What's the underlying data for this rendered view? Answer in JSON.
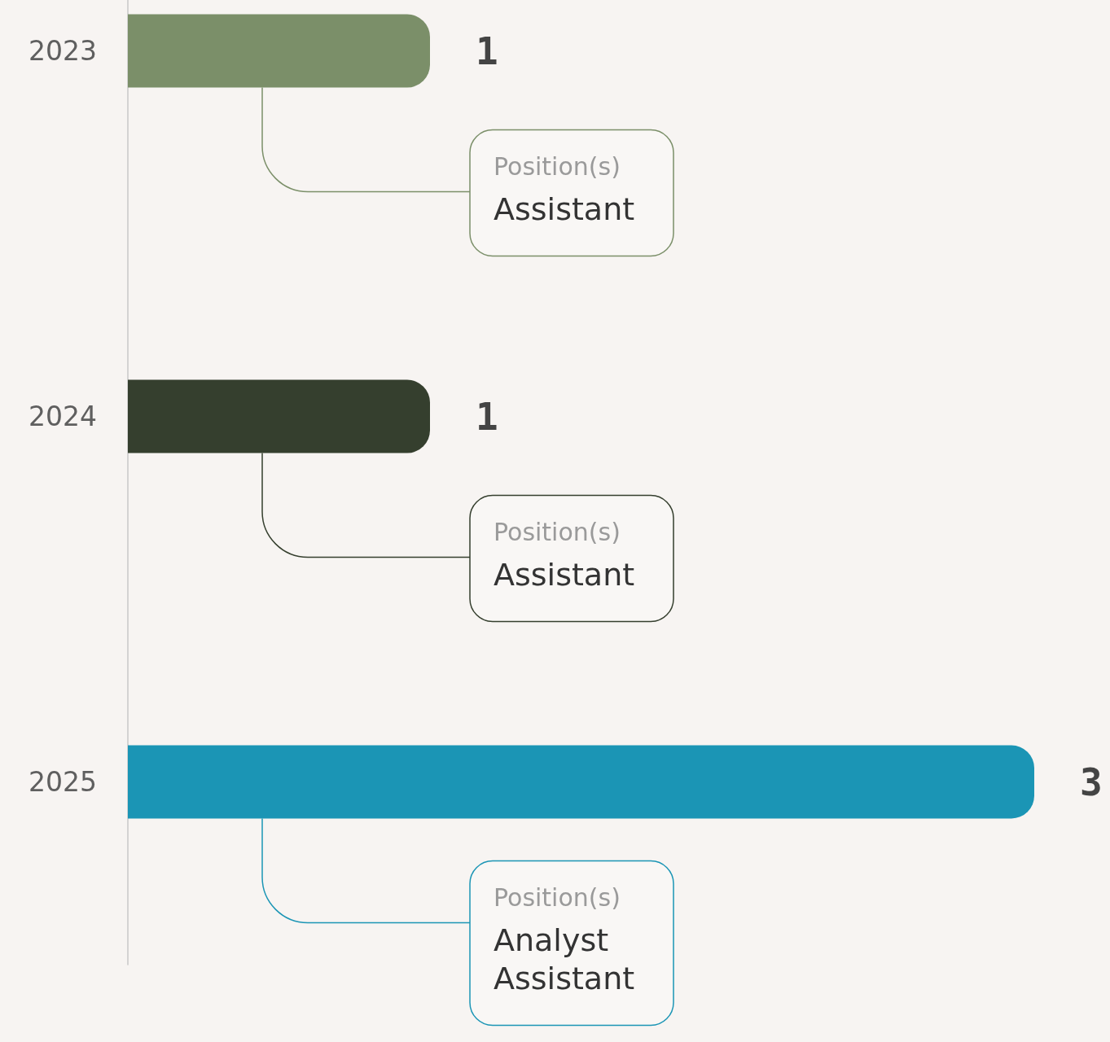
{
  "chart_data": {
    "type": "bar",
    "orientation": "horizontal",
    "categories": [
      "2023",
      "2024",
      "2025"
    ],
    "values": [
      1,
      1,
      3
    ],
    "colors": [
      "#7b8f69",
      "#353f2e",
      "#1b95b5"
    ],
    "data_labels": true,
    "tick_labels": "y",
    "grid": false,
    "annotations": [
      "Position(s)\nAssistant",
      "Position(s)\nAssistant",
      "Position(s)\nAnalyst\nAssistant"
    ]
  }
}
